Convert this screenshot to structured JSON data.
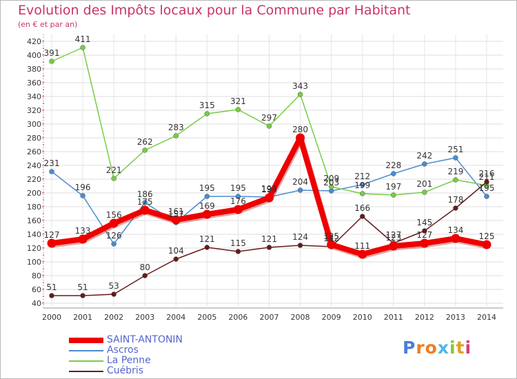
{
  "header": {
    "title": "Evolution des Impôts locaux pour la Commune par Habitant",
    "subtitle": "(en € et par an)"
  },
  "chart_data": {
    "type": "line",
    "title": "Evolution des Impôts locaux pour la Commune par Habitant",
    "subtitle": "(en € et par an)",
    "xlabel": "",
    "ylabel": "",
    "x": [
      "2000",
      "2001",
      "2002",
      "2003",
      "2004",
      "2005",
      "2006",
      "2007",
      "2008",
      "2009",
      "2010",
      "2011",
      "2012",
      "2013",
      "2014"
    ],
    "ylim": [
      40,
      420
    ],
    "yticks": [
      40,
      60,
      80,
      100,
      120,
      140,
      160,
      180,
      200,
      220,
      240,
      260,
      280,
      300,
      320,
      340,
      360,
      380,
      400,
      420
    ],
    "grid": true,
    "legend_position": "bottom-left",
    "series": [
      {
        "name": "Ascros",
        "color": "#4a8cd0",
        "values": [
          231,
          196,
          126,
          186,
          157,
          195,
          195,
          194,
          204,
          203,
          212,
          228,
          242,
          251,
          195
        ],
        "labels": [
          "231",
          "196",
          "126",
          "186",
          "157",
          "195",
          "195",
          "194",
          "204",
          "203",
          "212",
          "228",
          "242",
          "251",
          "195"
        ]
      },
      {
        "name": "La Penne",
        "color": "#77cc44",
        "values": [
          391,
          411,
          221,
          262,
          283,
          315,
          321,
          297,
          343,
          209,
          199,
          197,
          201,
          219,
          211
        ],
        "labels": [
          "391",
          "411",
          "221",
          "262",
          "283",
          "315",
          "321",
          "297",
          "343",
          "209",
          "199",
          "197",
          "201",
          "219",
          "211"
        ]
      },
      {
        "name": "Cuébris",
        "color": "#661a1a",
        "values": [
          51,
          51,
          53,
          80,
          104,
          121,
          115,
          121,
          124,
          122,
          166,
          127,
          145,
          178,
          216
        ],
        "labels": [
          "51",
          "51",
          "53",
          "80",
          "104",
          "121",
          "115",
          "121",
          "124",
          "122",
          "166",
          "127",
          "145",
          "178",
          "216"
        ]
      },
      {
        "name": "SAINT-ANTONIN",
        "color": "#ee0000",
        "values": [
          127,
          133,
          156,
          175,
          161,
          169,
          176,
          193,
          280,
          125,
          111,
          123,
          127,
          134,
          125
        ],
        "labels": [
          "127",
          "133",
          "156",
          "175",
          "161",
          "169",
          "176",
          "193",
          "280",
          "125",
          "111",
          "123",
          "127",
          "134",
          "125"
        ]
      }
    ]
  },
  "legend": {
    "items": [
      {
        "label": "SAINT-ANTONIN",
        "color": "#ee0000"
      },
      {
        "label": "Ascros",
        "color": "#4a8cd0"
      },
      {
        "label": "La Penne",
        "color": "#77cc44"
      },
      {
        "label": "Cuébris",
        "color": "#661a1a"
      }
    ]
  },
  "logo": {
    "text": "Proxiti",
    "colors": [
      "#4a7fd6",
      "#f07d1f",
      "#f07d1f",
      "#4fb8e8",
      "#8ac43c",
      "#e0a020",
      "#d93b7a"
    ]
  }
}
